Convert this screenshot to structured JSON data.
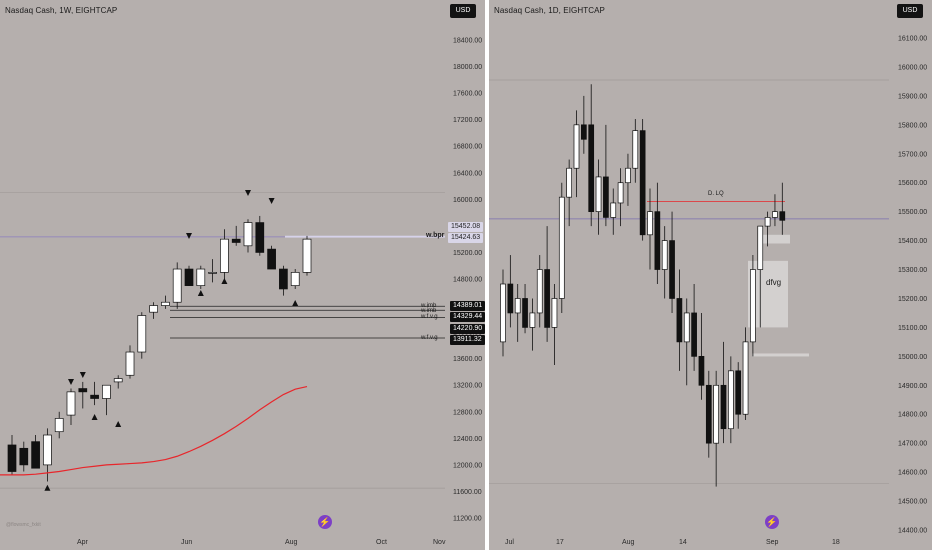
{
  "left_chart": {
    "title": "Nasdaq Cash, 1W, EIGHTCAP",
    "currency_button": "USD",
    "watermark": "@flowsmc_fxkit",
    "price_axis": [
      "18400.00",
      "18000.00",
      "17600.00",
      "17200.00",
      "16800.00",
      "16400.00",
      "16000.00",
      "15600.00",
      "15200.00",
      "14800.00",
      "14400.00",
      "14000.00",
      "13600.00",
      "13200.00",
      "12800.00",
      "12400.00",
      "12000.00",
      "11600.00",
      "11200.00"
    ],
    "time_axis": [
      "Apr",
      "Jun",
      "Aug",
      "Oct",
      "Nov"
    ],
    "price_tags": {
      "p15452": "15452.08",
      "p15424": "15424.63",
      "p14389": "14389.01",
      "p14329": "14329.44",
      "p14220": "14220.90",
      "p13911": "13911.32"
    },
    "annotations": {
      "wbpr": "w.bpr",
      "wimb1": "w.imb",
      "wimb2": "w.imb",
      "wfvg1": "w.f.v.g",
      "wfvg2": "w.f.v.g"
    },
    "colors": {
      "ma_line": "#e8262b",
      "up_candle": "#ffffff",
      "down_candle": "#111111",
      "background": "#b5afad"
    },
    "chart_data": {
      "type": "candlestick",
      "timeframe": "1W",
      "ylim": [
        11100,
        18600
      ],
      "candles": [
        {
          "o": 12300,
          "h": 12450,
          "l": 11850,
          "c": 11900
        },
        {
          "o": 12250,
          "h": 12350,
          "l": 11900,
          "c": 12000
        },
        {
          "o": 12350,
          "h": 12450,
          "l": 11950,
          "c": 11950
        },
        {
          "o": 12000,
          "h": 12550,
          "l": 11750,
          "c": 12450
        },
        {
          "o": 12500,
          "h": 12800,
          "l": 12400,
          "c": 12700
        },
        {
          "o": 12750,
          "h": 13150,
          "l": 12600,
          "c": 13100
        },
        {
          "o": 13150,
          "h": 13250,
          "l": 12850,
          "c": 13100
        },
        {
          "o": 13050,
          "h": 13250,
          "l": 12900,
          "c": 13000
        },
        {
          "o": 13000,
          "h": 13200,
          "l": 12750,
          "c": 13200
        },
        {
          "o": 13250,
          "h": 13350,
          "l": 13150,
          "c": 13300
        },
        {
          "o": 13350,
          "h": 13800,
          "l": 13300,
          "c": 13700
        },
        {
          "o": 13700,
          "h": 14300,
          "l": 13600,
          "c": 14250
        },
        {
          "o": 14300,
          "h": 14450,
          "l": 14200,
          "c": 14400
        },
        {
          "o": 14400,
          "h": 14550,
          "l": 14350,
          "c": 14450
        },
        {
          "o": 14450,
          "h": 15050,
          "l": 14350,
          "c": 14950
        },
        {
          "o": 14950,
          "h": 15000,
          "l": 14700,
          "c": 14700
        },
        {
          "o": 14700,
          "h": 15000,
          "l": 14650,
          "c": 14950
        },
        {
          "o": 14900,
          "h": 15100,
          "l": 14750,
          "c": 14900
        },
        {
          "o": 14900,
          "h": 15550,
          "l": 14800,
          "c": 15400
        },
        {
          "o": 15400,
          "h": 15600,
          "l": 15300,
          "c": 15350
        },
        {
          "o": 15300,
          "h": 15700,
          "l": 15200,
          "c": 15650
        },
        {
          "o": 15650,
          "h": 15750,
          "l": 15150,
          "c": 15200
        },
        {
          "o": 15250,
          "h": 15300,
          "l": 14950,
          "c": 14950
        },
        {
          "o": 14950,
          "h": 15000,
          "l": 14550,
          "c": 14650
        },
        {
          "o": 14700,
          "h": 14950,
          "l": 14650,
          "c": 14900
        },
        {
          "o": 14900,
          "h": 15450,
          "l": 14850,
          "c": 15400
        }
      ],
      "ma_series": [
        11850,
        11850,
        11860,
        11880,
        11900,
        11930,
        11960,
        11980,
        12000,
        12010,
        12020,
        12030,
        12050,
        12080,
        12130,
        12200,
        12280,
        12370,
        12470,
        12580,
        12700,
        12830,
        12950,
        13060,
        13140,
        13180
      ]
    }
  },
  "right_chart": {
    "title": "Nasdaq Cash, 1D, EIGHTCAP",
    "currency_button": "USD",
    "price_axis": [
      "16100.00",
      "16000.00",
      "15900.00",
      "15800.00",
      "15700.00",
      "15600.00",
      "15500.00",
      "15400.00",
      "15300.00",
      "15200.00",
      "15100.00",
      "15000.00",
      "14900.00",
      "14800.00",
      "14700.00",
      "14600.00",
      "14500.00",
      "14400.00"
    ],
    "time_axis": [
      "Jul",
      "17",
      "Aug",
      "14",
      "Sep",
      "18"
    ],
    "annotations": {
      "dlq": "D. LQ",
      "dfvg": "dfvg"
    },
    "colors": {
      "lq_line": "#e8262b",
      "hline": "#7b6fb0"
    },
    "chart_data": {
      "type": "candlestick",
      "timeframe": "1D",
      "ylim": [
        14380,
        16160
      ],
      "candles": [
        {
          "o": 15050,
          "h": 15300,
          "l": 15000,
          "c": 15250
        },
        {
          "o": 15250,
          "h": 15350,
          "l": 15100,
          "c": 15150
        },
        {
          "o": 15150,
          "h": 15250,
          "l": 15050,
          "c": 15200
        },
        {
          "o": 15200,
          "h": 15250,
          "l": 15080,
          "c": 15100
        },
        {
          "o": 15100,
          "h": 15200,
          "l": 15020,
          "c": 15150
        },
        {
          "o": 15150,
          "h": 15350,
          "l": 15100,
          "c": 15300
        },
        {
          "o": 15300,
          "h": 15450,
          "l": 15050,
          "c": 15100
        },
        {
          "o": 15100,
          "h": 15250,
          "l": 14970,
          "c": 15200
        },
        {
          "o": 15200,
          "h": 15600,
          "l": 15150,
          "c": 15550
        },
        {
          "o": 15550,
          "h": 15680,
          "l": 15450,
          "c": 15650
        },
        {
          "o": 15650,
          "h": 15850,
          "l": 15550,
          "c": 15800
        },
        {
          "o": 15800,
          "h": 15900,
          "l": 15700,
          "c": 15750
        },
        {
          "o": 15800,
          "h": 15940,
          "l": 15450,
          "c": 15500
        },
        {
          "o": 15500,
          "h": 15680,
          "l": 15420,
          "c": 15620
        },
        {
          "o": 15620,
          "h": 15800,
          "l": 15450,
          "c": 15480
        },
        {
          "o": 15480,
          "h": 15580,
          "l": 15420,
          "c": 15530
        },
        {
          "o": 15530,
          "h": 15650,
          "l": 15450,
          "c": 15600
        },
        {
          "o": 15600,
          "h": 15700,
          "l": 15520,
          "c": 15650
        },
        {
          "o": 15650,
          "h": 15820,
          "l": 15600,
          "c": 15780
        },
        {
          "o": 15780,
          "h": 15820,
          "l": 15400,
          "c": 15420
        },
        {
          "o": 15420,
          "h": 15580,
          "l": 15300,
          "c": 15500
        },
        {
          "o": 15500,
          "h": 15600,
          "l": 15250,
          "c": 15300
        },
        {
          "o": 15300,
          "h": 15450,
          "l": 15200,
          "c": 15400
        },
        {
          "o": 15400,
          "h": 15500,
          "l": 15150,
          "c": 15200
        },
        {
          "o": 15200,
          "h": 15300,
          "l": 14950,
          "c": 15050
        },
        {
          "o": 15050,
          "h": 15200,
          "l": 14900,
          "c": 15150
        },
        {
          "o": 15150,
          "h": 15250,
          "l": 14950,
          "c": 15000
        },
        {
          "o": 15000,
          "h": 15150,
          "l": 14850,
          "c": 14900
        },
        {
          "o": 14900,
          "h": 14950,
          "l": 14650,
          "c": 14700
        },
        {
          "o": 14700,
          "h": 14950,
          "l": 14550,
          "c": 14900
        },
        {
          "o": 14900,
          "h": 15050,
          "l": 14700,
          "c": 14750
        },
        {
          "o": 14750,
          "h": 15000,
          "l": 14700,
          "c": 14950
        },
        {
          "o": 14950,
          "h": 14980,
          "l": 14750,
          "c": 14800
        },
        {
          "o": 14800,
          "h": 15100,
          "l": 14780,
          "c": 15050
        },
        {
          "o": 15050,
          "h": 15350,
          "l": 15000,
          "c": 15300
        },
        {
          "o": 15300,
          "h": 15450,
          "l": 15100,
          "c": 15450
        },
        {
          "o": 15450,
          "h": 15500,
          "l": 15380,
          "c": 15480
        },
        {
          "o": 15480,
          "h": 15560,
          "l": 15450,
          "c": 15500
        },
        {
          "o": 15500,
          "h": 15600,
          "l": 15420,
          "c": 15470
        }
      ]
    }
  }
}
